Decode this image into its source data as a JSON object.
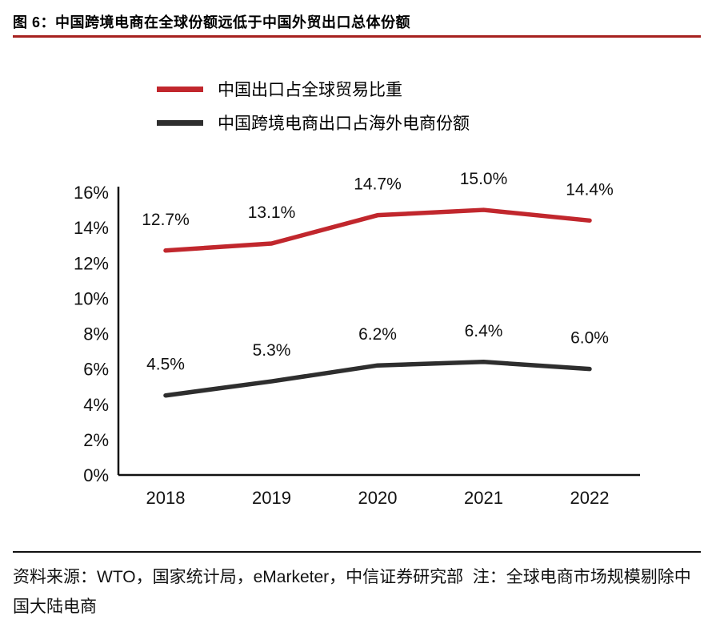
{
  "chart_data": {
    "type": "line",
    "title": "图 6：中国跨境电商在全球份额远低于中国外贸出口总体份额",
    "categories": [
      "2018",
      "2019",
      "2020",
      "2021",
      "2022"
    ],
    "series": [
      {
        "name": "中国出口占全球贸易比重",
        "color": "#c1272d",
        "values": [
          12.7,
          13.1,
          14.7,
          15.0,
          14.4
        ],
        "point_labels": [
          "12.7%",
          "13.1%",
          "14.7%",
          "15.0%",
          "14.4%"
        ]
      },
      {
        "name": "中国跨境电商出口占海外电商份额",
        "color": "#2e2e2e",
        "values": [
          4.5,
          5.3,
          6.2,
          6.4,
          6.0
        ],
        "point_labels": [
          "4.5%",
          "5.3%",
          "6.2%",
          "6.4%",
          "6.0%"
        ]
      }
    ],
    "ylim": [
      0,
      16
    ],
    "ytick_step": 2,
    "ytick_labels": [
      "0%",
      "2%",
      "4%",
      "6%",
      "8%",
      "10%",
      "12%",
      "14%",
      "16%"
    ],
    "xlabel": "",
    "ylabel": "",
    "grid": false,
    "legend_position": "top-left"
  },
  "footer": {
    "text": "资料来源：WTO，国家统计局，eMarketer，中信证券研究部  注：全球电商市场规模剔除中国大陆电商"
  },
  "colors": {
    "accent_red": "#c1272d",
    "line_black": "#2e2e2e",
    "title_underline": "#a6211f",
    "axis": "#111111",
    "text": "#111111"
  }
}
